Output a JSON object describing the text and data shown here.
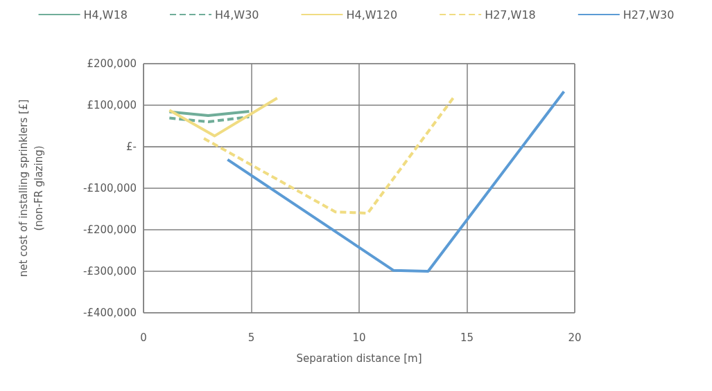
{
  "chart_data": {
    "type": "line",
    "xlabel": "Separation distance [m]",
    "ylabel": "net cost of installing sprinklers [£]\n(non-FR glazing)",
    "xlim": [
      0,
      20
    ],
    "xticks": [
      0,
      5,
      10,
      15,
      20
    ],
    "ylim": [
      -400000,
      200000
    ],
    "yticks": [
      {
        "value": -400000,
        "label": "-£400,000"
      },
      {
        "value": -300000,
        "label": "-£300,000"
      },
      {
        "value": -200000,
        "label": "-£200,000"
      },
      {
        "value": -100000,
        "label": "-£100,000"
      },
      {
        "value": 0,
        "label": "£-"
      },
      {
        "value": 100000,
        "label": "£100,000"
      },
      {
        "value": 200000,
        "label": "£200,000"
      }
    ],
    "grid": true,
    "legend": "top",
    "marker": "none",
    "series": [
      {
        "name": "H4,W18",
        "color": "#70ad99",
        "line_style": "solid",
        "x": [
          1.2,
          3.0,
          4.9
        ],
        "values": [
          84000,
          75000,
          85000
        ]
      },
      {
        "name": "H4,W30",
        "color": "#70ad99",
        "line_style": "dashed",
        "x": [
          1.2,
          3.0,
          4.9
        ],
        "values": [
          69000,
          60000,
          72000
        ]
      },
      {
        "name": "H4,W120",
        "color": "#f0dc82",
        "line_style": "solid",
        "x": [
          1.2,
          3.3,
          6.2
        ],
        "values": [
          88000,
          26000,
          117000
        ]
      },
      {
        "name": "H27,W18",
        "color": "#f0dc82",
        "line_style": "dashed",
        "x": [
          2.8,
          8.9,
          10.4,
          14.4
        ],
        "values": [
          20000,
          -157000,
          -160000,
          120000
        ]
      },
      {
        "name": "H27,W30",
        "color": "#5b9bd5",
        "line_style": "solid",
        "x": [
          3.9,
          11.6,
          13.2,
          19.5
        ],
        "values": [
          -31000,
          -298000,
          -300000,
          133000
        ]
      }
    ]
  }
}
